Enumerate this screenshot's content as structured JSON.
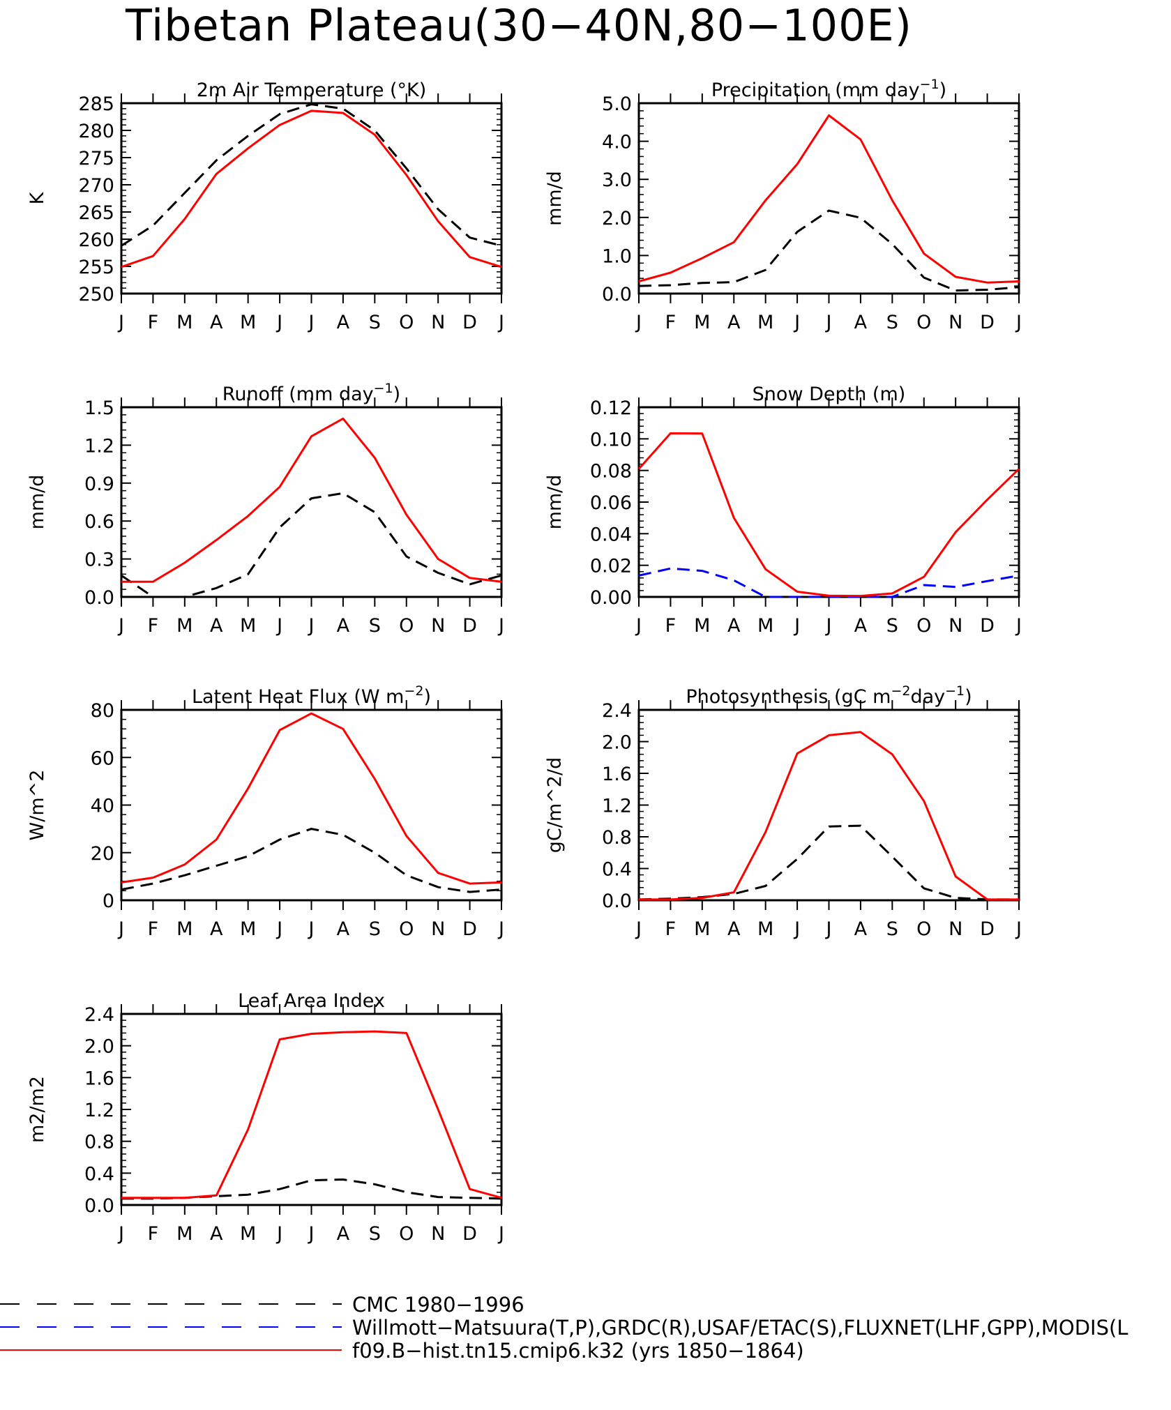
{
  "title": "Tibetan Plateau(30−40N,80−100E)",
  "months": [
    "J",
    "F",
    "M",
    "A",
    "M",
    "J",
    "J",
    "A",
    "S",
    "O",
    "N",
    "D",
    "J"
  ],
  "legend": [
    {
      "label": "CMC 1980−1996",
      "color": "#000000",
      "style": "dash"
    },
    {
      "label": "Willmott−Matsuura(T,P),GRDC(R),USAF/ETAC(S),FLUXNET(LHF,GPP),MODIS(L",
      "color": "#0000ff",
      "style": "dash"
    },
    {
      "label": "f09.B−hist.tn15.cmip6.k32 (yrs 1850−1864)",
      "color": "#ff0000",
      "style": "solid"
    }
  ],
  "chart_data": [
    {
      "type": "line",
      "title": "2m Air Temperature (°K)",
      "ylabel": "K",
      "ylim": [
        250,
        285
      ],
      "yticks": [
        "250",
        "255",
        "260",
        "265",
        "270",
        "275",
        "280",
        "285"
      ],
      "series": [
        {
          "color": "#000000",
          "dash": true,
          "values": [
            258.8,
            262.5,
            268.5,
            274.5,
            279,
            283,
            284.8,
            284,
            280,
            273,
            265.5,
            260.3,
            258.8
          ]
        },
        {
          "color": "#ff0000",
          "dash": false,
          "values": [
            254.9,
            256.9,
            263.7,
            272,
            276.7,
            281,
            283.6,
            283.2,
            279.2,
            271.8,
            263.3,
            256.7,
            254.9
          ]
        }
      ]
    },
    {
      "type": "line",
      "title": "Precipitation (mm day⁻¹)",
      "ylabel": "mm/d",
      "ylim": [
        0,
        5
      ],
      "yticks": [
        "0.0",
        "1.0",
        "2.0",
        "3.0",
        "4.0",
        "5.0"
      ],
      "series": [
        {
          "color": "#000000",
          "dash": true,
          "values": [
            0.2,
            0.22,
            0.28,
            0.3,
            0.62,
            1.62,
            2.18,
            1.99,
            1.3,
            0.42,
            0.08,
            0.1,
            0.17
          ]
        },
        {
          "color": "#ff0000",
          "dash": false,
          "values": [
            0.32,
            0.55,
            0.93,
            1.35,
            2.45,
            3.4,
            4.68,
            4.05,
            2.45,
            1.05,
            0.44,
            0.29,
            0.32
          ]
        }
      ]
    },
    {
      "type": "line",
      "title": "Runoff (mm day⁻¹)",
      "ylabel": "mm/d",
      "ylim": [
        0,
        1.5
      ],
      "yticks": [
        "0.0",
        "0.3",
        "0.6",
        "0.9",
        "1.2",
        "1.5"
      ],
      "series": [
        {
          "color": "#000000",
          "dash": true,
          "values": [
            0.17,
            0.0,
            0.0,
            0.07,
            0.18,
            0.55,
            0.78,
            0.82,
            0.67,
            0.32,
            0.19,
            0.1,
            0.17
          ]
        },
        {
          "color": "#ff0000",
          "dash": false,
          "values": [
            0.12,
            0.12,
            0.27,
            0.45,
            0.64,
            0.87,
            1.27,
            1.41,
            1.1,
            0.65,
            0.3,
            0.15,
            0.12
          ]
        }
      ]
    },
    {
      "type": "line",
      "title": "Snow Depth (m)",
      "ylabel": "mm/d",
      "ylim": [
        0,
        0.12
      ],
      "yticks": [
        "0.00",
        "0.02",
        "0.04",
        "0.06",
        "0.08",
        "0.10",
        "0.12"
      ],
      "series": [
        {
          "color": "#000000",
          "dash": true,
          "values": [
            0,
            0,
            0,
            0,
            0,
            0,
            0,
            0,
            0,
            0,
            0,
            0,
            0
          ]
        },
        {
          "color": "#0000ff",
          "dash": true,
          "values": [
            0.0135,
            0.018,
            0.0165,
            0.0105,
            0.0,
            0,
            0,
            0,
            0,
            0.0075,
            0.0063,
            0.01,
            0.0135
          ]
        },
        {
          "color": "#ff0000",
          "dash": false,
          "values": [
            0.081,
            0.1035,
            0.1034,
            0.05,
            0.0175,
            0.0033,
            0.0008,
            0.0006,
            0.0022,
            0.0127,
            0.041,
            0.0615,
            0.081
          ]
        }
      ]
    },
    {
      "type": "line",
      "title": "Latent Heat Flux (W m⁻²)",
      "ylabel": "W/m^2",
      "ylim": [
        0,
        80
      ],
      "yticks": [
        "0",
        "20",
        "40",
        "60",
        "80"
      ],
      "series": [
        {
          "color": "#000000",
          "dash": true,
          "values": [
            4.5,
            7,
            10.5,
            14.5,
            18.5,
            25.5,
            30,
            27.5,
            20,
            10.5,
            5.5,
            3.5,
            4.5
          ]
        },
        {
          "color": "#ff0000",
          "dash": false,
          "values": [
            7.5,
            9.5,
            15,
            25.5,
            47,
            71.5,
            78.5,
            72,
            51,
            27,
            11.5,
            7,
            7.5
          ]
        }
      ]
    },
    {
      "type": "line",
      "title": "Photosynthesis (gC m⁻²day⁻¹)",
      "ylabel": "gC/m^2/d",
      "ylim": [
        0,
        2.4
      ],
      "yticks": [
        "0.0",
        "0.4",
        "0.8",
        "1.2",
        "1.6",
        "2.0",
        "2.4"
      ],
      "series": [
        {
          "color": "#000000",
          "dash": true,
          "values": [
            0.01,
            0.02,
            0.04,
            0.08,
            0.18,
            0.52,
            0.93,
            0.94,
            0.55,
            0.15,
            0.03,
            0.01,
            0.01
          ]
        },
        {
          "color": "#ff0000",
          "dash": false,
          "values": [
            0.01,
            0.01,
            0.03,
            0.1,
            0.86,
            1.85,
            2.08,
            2.12,
            1.84,
            1.25,
            0.3,
            0.01,
            0.01
          ]
        }
      ]
    },
    {
      "type": "line",
      "title": "Leaf Area Index",
      "ylabel": "m2/m2",
      "ylim": [
        0,
        2.4
      ],
      "yticks": [
        "0.0",
        "0.4",
        "0.8",
        "1.2",
        "1.6",
        "2.0",
        "2.4"
      ],
      "series": [
        {
          "color": "#000000",
          "dash": true,
          "values": [
            0.08,
            0.08,
            0.09,
            0.11,
            0.13,
            0.2,
            0.31,
            0.32,
            0.26,
            0.16,
            0.1,
            0.09,
            0.08
          ]
        },
        {
          "color": "#ff0000",
          "dash": false,
          "values": [
            0.09,
            0.09,
            0.09,
            0.12,
            0.95,
            2.08,
            2.15,
            2.17,
            2.18,
            2.16,
            1.2,
            0.2,
            0.09
          ]
        }
      ]
    }
  ]
}
